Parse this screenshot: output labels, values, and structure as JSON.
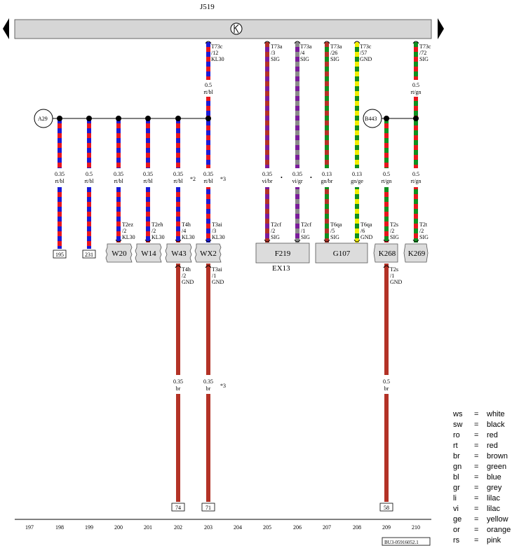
{
  "title": "J519",
  "relay_symbol": "relay-coil-icon",
  "colors": {
    "rt": "#e8161d",
    "bl": "#1b1bd6",
    "vi": "#7b1c9c",
    "gr": "#8a8a8a",
    "gn": "#0f8f1f",
    "ge": "#f2ee00",
    "br": "#b33226",
    "bar": "#d6d6d6"
  },
  "connectors_top": [
    {
      "id": "c203",
      "lines": [
        "T73c",
        "/12",
        "KL30"
      ]
    },
    {
      "id": "c205",
      "lines": [
        "T73a",
        "/3",
        "SIG"
      ]
    },
    {
      "id": "c206",
      "lines": [
        "T73a",
        "/4",
        "SIG"
      ]
    },
    {
      "id": "c207",
      "lines": [
        "T73a",
        "/26",
        "SIG"
      ]
    },
    {
      "id": "c208",
      "lines": [
        "T73c",
        "/57",
        "GND"
      ]
    },
    {
      "id": "c210",
      "lines": [
        "T73c",
        "/72",
        "SIG"
      ]
    }
  ],
  "wire_labels_upper": [
    {
      "id": "u203",
      "size": "0.5",
      "color": "rt/bl"
    },
    {
      "id": "u210",
      "size": "0.5",
      "color": "rt/gn"
    }
  ],
  "junctions": [
    {
      "id": "A29",
      "label": "A29"
    },
    {
      "id": "B443",
      "label": "B443"
    }
  ],
  "wire_labels_mid": [
    {
      "id": "m198",
      "size": "0.35",
      "color": "rt/bl"
    },
    {
      "id": "m199",
      "size": "0.5",
      "color": "rt/bl"
    },
    {
      "id": "m200",
      "size": "0.35",
      "color": "rt/bl"
    },
    {
      "id": "m201",
      "size": "0.35",
      "color": "rt/bl"
    },
    {
      "id": "m202",
      "size": "0.35",
      "color": "rt/bl"
    },
    {
      "id": "m203",
      "size": "0.35",
      "color": "rt/bl"
    },
    {
      "id": "m205",
      "size": "0.35",
      "color": "vi/br"
    },
    {
      "id": "m206",
      "size": "0.35",
      "color": "vi/gr"
    },
    {
      "id": "m207",
      "size": "0.13",
      "color": "gn/br"
    },
    {
      "id": "m208",
      "size": "0.13",
      "color": "gn/ge"
    },
    {
      "id": "m209",
      "size": "0.5",
      "color": "rt/gn"
    },
    {
      "id": "m210",
      "size": "0.5",
      "color": "rt/gn"
    }
  ],
  "notes": {
    "n202": "*2",
    "n203": "*3",
    "n203b": "*3",
    "dot1": "•",
    "dot2": "•"
  },
  "connectors_bottom": [
    {
      "id": "b200",
      "lines": [
        "T2ez",
        "/2",
        "KL30"
      ]
    },
    {
      "id": "b201",
      "lines": [
        "T2eh",
        "/2",
        "KL30"
      ]
    },
    {
      "id": "b202",
      "lines": [
        "T4h",
        "/4",
        "KL30"
      ]
    },
    {
      "id": "b203",
      "lines": [
        "T3ai",
        "/3",
        "KL30"
      ]
    },
    {
      "id": "b205",
      "lines": [
        "T2cf",
        "/2",
        "SIG"
      ]
    },
    {
      "id": "b206",
      "lines": [
        "T2cf",
        "/1",
        "SIG"
      ]
    },
    {
      "id": "b207",
      "lines": [
        "T6qa",
        "/5",
        "SIG"
      ]
    },
    {
      "id": "b208",
      "lines": [
        "T6qa",
        "/6",
        "GND"
      ]
    },
    {
      "id": "b209",
      "lines": [
        "T2s",
        "/2",
        "SIG"
      ]
    },
    {
      "id": "b210",
      "lines": [
        "T2t",
        "/2",
        "SIG"
      ]
    }
  ],
  "components": [
    {
      "id": "W20",
      "label": "W20"
    },
    {
      "id": "W14",
      "label": "W14"
    },
    {
      "id": "W43",
      "label": "W43"
    },
    {
      "id": "WX2",
      "label": "WX2"
    },
    {
      "id": "F219",
      "label": "F219"
    },
    {
      "id": "G107",
      "label": "G107"
    },
    {
      "id": "K268",
      "label": "K268"
    },
    {
      "id": "K269",
      "label": "K269"
    }
  ],
  "ex_label": "EX13",
  "refs_top": [
    {
      "id": "r198",
      "text": "195"
    },
    {
      "id": "r199",
      "text": "231"
    }
  ],
  "connectors_lower": [
    {
      "id": "l202",
      "lines": [
        "T4h",
        "/2",
        "GND"
      ]
    },
    {
      "id": "l203",
      "lines": [
        "T3ai",
        "/1",
        "GND"
      ]
    },
    {
      "id": "l209",
      "lines": [
        "T2s",
        "/1",
        "GND"
      ]
    }
  ],
  "wire_labels_lower": [
    {
      "id": "w202",
      "size": "0.35",
      "color": "br"
    },
    {
      "id": "w203",
      "size": "0.35",
      "color": "br"
    },
    {
      "id": "w209",
      "size": "0.5",
      "color": "br"
    }
  ],
  "refs_bottom": [
    {
      "id": "rb202",
      "text": "74"
    },
    {
      "id": "rb203",
      "text": "71"
    },
    {
      "id": "rb209",
      "text": "58"
    }
  ],
  "columns": [
    "197",
    "198",
    "199",
    "200",
    "201",
    "202",
    "203",
    "204",
    "205",
    "206",
    "207",
    "208",
    "209",
    "210"
  ],
  "doc_code": "BU3-05916052.1",
  "legend": [
    {
      "abbr": "ws",
      "eq": "=",
      "name": "white"
    },
    {
      "abbr": "sw",
      "eq": "=",
      "name": "black"
    },
    {
      "abbr": "ro",
      "eq": "=",
      "name": "red"
    },
    {
      "abbr": "rt",
      "eq": "=",
      "name": "red"
    },
    {
      "abbr": "br",
      "eq": "=",
      "name": "brown"
    },
    {
      "abbr": "gn",
      "eq": "=",
      "name": "green"
    },
    {
      "abbr": "bl",
      "eq": "=",
      "name": "blue"
    },
    {
      "abbr": "gr",
      "eq": "=",
      "name": "grey"
    },
    {
      "abbr": "li",
      "eq": "=",
      "name": "lilac"
    },
    {
      "abbr": "vi",
      "eq": "=",
      "name": "lilac"
    },
    {
      "abbr": "ge",
      "eq": "=",
      "name": "yellow"
    },
    {
      "abbr": "or",
      "eq": "=",
      "name": "orange"
    },
    {
      "abbr": "rs",
      "eq": "=",
      "name": "pink"
    }
  ]
}
